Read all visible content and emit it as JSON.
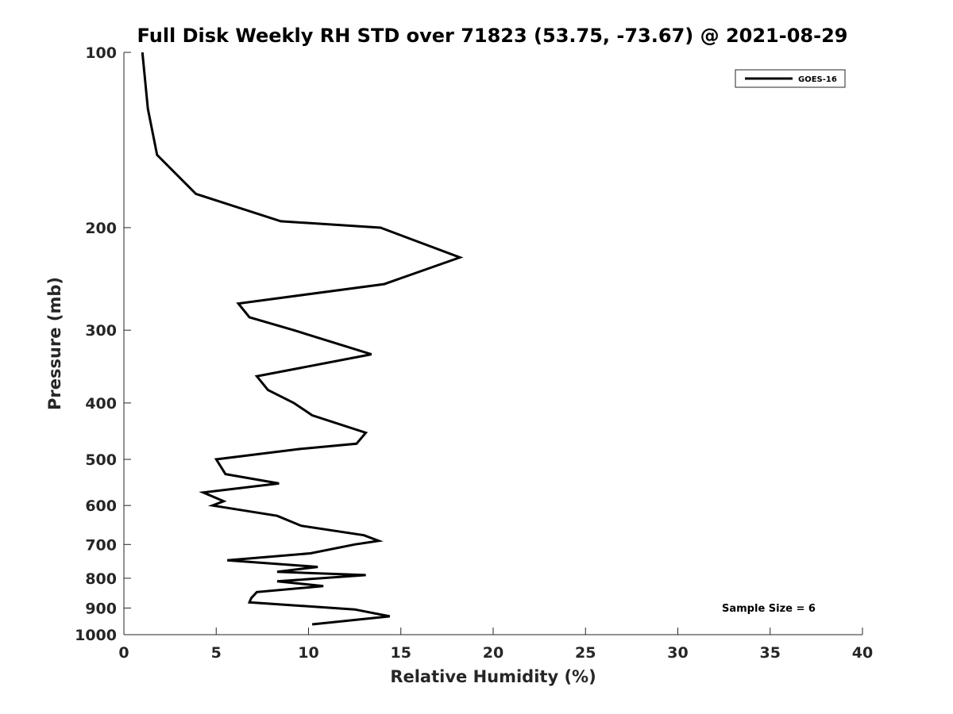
{
  "chart_data": {
    "type": "line",
    "title": "Full Disk Weekly RH STD over 71823 (53.75, -73.67) @ 2021-08-29",
    "xlabel": "Relative Humidity (%)",
    "ylabel": "Pressure (mb)",
    "xlim": [
      0,
      40
    ],
    "ylim": [
      1000,
      100
    ],
    "y_scale": "log",
    "x_ticks": [
      0,
      5,
      10,
      15,
      20,
      25,
      30,
      35,
      40
    ],
    "x_tick_labels": [
      "0",
      "5",
      "10",
      "15",
      "20",
      "25",
      "30",
      "35",
      "40"
    ],
    "y_ticks": [
      100,
      200,
      300,
      400,
      500,
      600,
      700,
      800,
      900,
      1000
    ],
    "y_tick_labels": [
      "100",
      "200",
      "300",
      "400",
      "500",
      "600",
      "700",
      "800",
      "900",
      "1000"
    ],
    "grid": false,
    "legend_position": "top-right",
    "annotation": "Sample Size = 6",
    "series": [
      {
        "name": "GOES-16",
        "color": "#000000",
        "points": [
          [
            1.0,
            100
          ],
          [
            1.3,
            125
          ],
          [
            1.8,
            150
          ],
          [
            3.9,
            175
          ],
          [
            8.5,
            195
          ],
          [
            13.9,
            200
          ],
          [
            18.2,
            225
          ],
          [
            14.1,
            250
          ],
          [
            6.2,
            270
          ],
          [
            6.8,
            285
          ],
          [
            9.2,
            300
          ],
          [
            13.4,
            330
          ],
          [
            7.2,
            360
          ],
          [
            7.8,
            380
          ],
          [
            9.2,
            400
          ],
          [
            10.2,
            420
          ],
          [
            13.1,
            450
          ],
          [
            12.6,
            470
          ],
          [
            9.5,
            480
          ],
          [
            5.0,
            500
          ],
          [
            5.5,
            530
          ],
          [
            8.4,
            550
          ],
          [
            4.3,
            570
          ],
          [
            5.4,
            590
          ],
          [
            4.8,
            600
          ],
          [
            8.3,
            625
          ],
          [
            9.6,
            650
          ],
          [
            13.0,
            675
          ],
          [
            13.8,
            690
          ],
          [
            12.5,
            700
          ],
          [
            10.1,
            725
          ],
          [
            5.6,
            745
          ],
          [
            10.5,
            765
          ],
          [
            8.3,
            780
          ],
          [
            13.1,
            790
          ],
          [
            8.3,
            810
          ],
          [
            10.8,
            825
          ],
          [
            7.2,
            845
          ],
          [
            6.9,
            865
          ],
          [
            6.8,
            880
          ],
          [
            12.5,
            905
          ],
          [
            14.4,
            930
          ],
          [
            10.2,
            960
          ]
        ]
      }
    ]
  }
}
